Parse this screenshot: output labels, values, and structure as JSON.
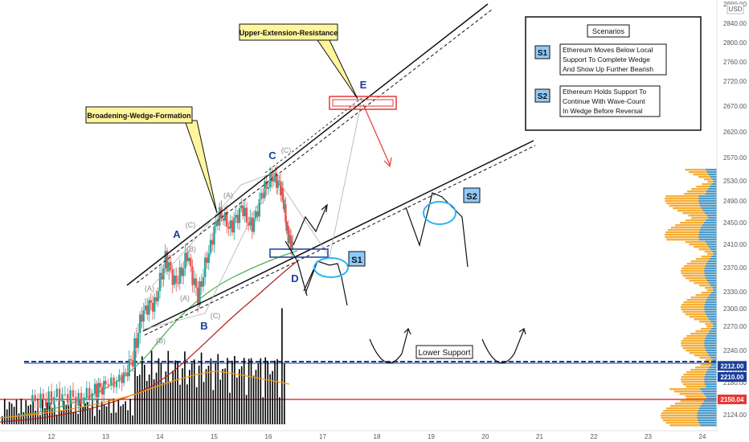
{
  "colors": {
    "background": "#ffffff",
    "price_up": "#26a69a",
    "price_down": "#ef5350",
    "volume": "#000000",
    "ma_fast": "#4caf50",
    "ma_slow": "#b71c1c",
    "volume_ma": "#ff9800",
    "support_blue": "#1a3e9a",
    "support_red": "#e53935",
    "profile": "#f5a623",
    "profile_alt": "#2196f3",
    "label_yellow": "#fff59d",
    "label_blue": "#90caf9"
  },
  "chart_data": {
    "type": "candlestick",
    "currency_label": "USD",
    "y_ticks": [
      2124,
      2150,
      2180,
      2210,
      2240,
      2270,
      2300,
      2330,
      2370,
      2410,
      2450,
      2490,
      2530,
      2570,
      2620,
      2670,
      2720,
      2760,
      2800,
      2840,
      2880
    ],
    "x_ticks": [
      "12",
      "13",
      "14",
      "15",
      "16",
      "17",
      "18",
      "19",
      "20",
      "21",
      "22",
      "23",
      "24"
    ],
    "price_badges": [
      {
        "value": "2212.00",
        "color": "#1a3e9a"
      },
      {
        "value": "2210.00",
        "color": "#1a3e9a"
      },
      {
        "value": "2150.04",
        "color": "#e53935"
      }
    ],
    "price_path": [
      [
        11.6,
        2145
      ],
      [
        11.9,
        2150
      ],
      [
        12.2,
        2160
      ],
      [
        12.5,
        2150
      ],
      [
        12.8,
        2165
      ],
      [
        13.0,
        2175
      ],
      [
        13.3,
        2190
      ],
      [
        13.5,
        2230
      ],
      [
        13.7,
        2300
      ],
      [
        13.9,
        2310
      ],
      [
        14.1,
        2385
      ],
      [
        14.3,
        2340
      ],
      [
        14.5,
        2390
      ],
      [
        14.7,
        2320
      ],
      [
        14.9,
        2400
      ],
      [
        15.1,
        2470
      ],
      [
        15.3,
        2440
      ],
      [
        15.5,
        2475
      ],
      [
        15.7,
        2440
      ],
      [
        15.9,
        2510
      ],
      [
        16.1,
        2540
      ],
      [
        16.25,
        2510
      ],
      [
        16.35,
        2430
      ],
      [
        16.45,
        2405
      ]
    ],
    "labels": {
      "waves": [
        "A",
        "B",
        "C",
        "D",
        "E"
      ],
      "subwaves": [
        "(A)",
        "(B)",
        "(C)"
      ],
      "annotations": [
        "Broadening-Wedge-Formation",
        "Upper-Extension-Resistance",
        "Lower Support"
      ],
      "scenario_markers": [
        "S1",
        "S2"
      ]
    },
    "scenarios": {
      "title": "Scenarios",
      "items": [
        {
          "id": "S1",
          "text": [
            "Ethereum Moves Below Local",
            "Support To Complete Wedge",
            "And Show Up Further Bearish"
          ]
        },
        {
          "id": "S2",
          "text": [
            "Ethereum Holds Support To",
            "Continue With Wave-Count",
            "In Wedge Before Reversal"
          ]
        }
      ]
    },
    "support_levels": [
      2212.0,
      2210.0,
      2150.04
    ],
    "grid": false
  }
}
